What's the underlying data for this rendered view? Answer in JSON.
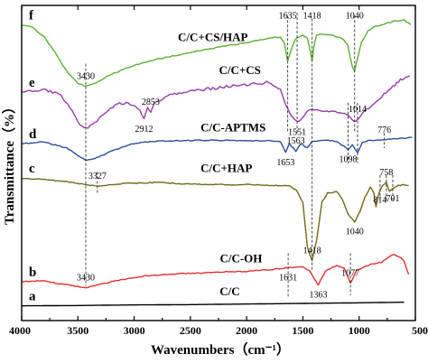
{
  "chart_data": {
    "type": "line",
    "xlabel": "Wavenumbers（cm⁻¹）",
    "ylabel": "Transmittance（%）",
    "xlim": [
      4000,
      500
    ],
    "x_reversed": true,
    "xticks": [
      4000,
      3500,
      3000,
      2500,
      2000,
      1500,
      1000,
      500
    ],
    "xtick_labels": [
      "4000",
      "3500",
      "3000",
      "2500",
      "2000",
      "1500",
      "1000",
      "500"
    ],
    "ylim": [
      0,
      100
    ],
    "series": [
      {
        "id": "a",
        "letter": "a",
        "name": "C/C",
        "color": "#000000",
        "points": [
          [
            4000,
            2.5
          ],
          [
            3500,
            2.6
          ],
          [
            3000,
            2.8
          ],
          [
            2500,
            2.9
          ],
          [
            2000,
            3.1
          ],
          [
            1500,
            3.3
          ],
          [
            1000,
            3.5
          ],
          [
            600,
            3.7
          ]
        ]
      },
      {
        "id": "b",
        "letter": "b",
        "name": "C/C-OH",
        "color": "#e03030",
        "points": [
          [
            4000,
            10.5
          ],
          [
            3800,
            10.8
          ],
          [
            3600,
            9.5
          ],
          [
            3430,
            8.5
          ],
          [
            3200,
            10.5
          ],
          [
            2900,
            12.5
          ],
          [
            2600,
            13.2
          ],
          [
            2300,
            13.6
          ],
          [
            2000,
            14.0
          ],
          [
            1800,
            14.5
          ],
          [
            1631,
            15.2
          ],
          [
            1500,
            15.5
          ],
          [
            1440,
            14.0
          ],
          [
            1363,
            9.5
          ],
          [
            1300,
            14.0
          ],
          [
            1200,
            16.0
          ],
          [
            1130,
            15.0
          ],
          [
            1077,
            10.0
          ],
          [
            1020,
            14.5
          ],
          [
            900,
            16.2
          ],
          [
            800,
            17.0
          ],
          [
            700,
            19.5
          ],
          [
            650,
            19.0
          ],
          [
            600,
            17.5
          ],
          [
            560,
            13.0
          ]
        ]
      },
      {
        "id": "c",
        "letter": "c",
        "name": "C/C+HAP",
        "color": "#6b6b1a",
        "points": [
          [
            4000,
            45.0
          ],
          [
            3800,
            44.5
          ],
          [
            3600,
            43.8
          ],
          [
            3430,
            42.8
          ],
          [
            3327,
            42.3
          ],
          [
            3100,
            43.2
          ],
          [
            2800,
            43.5
          ],
          [
            2500,
            43.0
          ],
          [
            2200,
            42.8
          ],
          [
            2000,
            42.8
          ],
          [
            1800,
            42.6
          ],
          [
            1700,
            42.5
          ],
          [
            1620,
            42.5
          ],
          [
            1560,
            41.0
          ],
          [
            1500,
            37.0
          ],
          [
            1460,
            22.0
          ],
          [
            1418,
            17.5
          ],
          [
            1380,
            24.0
          ],
          [
            1330,
            37.0
          ],
          [
            1280,
            40.0
          ],
          [
            1200,
            40.5
          ],
          [
            1150,
            38.0
          ],
          [
            1100,
            33.0
          ],
          [
            1040,
            30.5
          ],
          [
            990,
            34.0
          ],
          [
            950,
            38.5
          ],
          [
            900,
            42.0
          ],
          [
            870,
            40.0
          ],
          [
            850,
            35.5
          ],
          [
            830,
            39.0
          ],
          [
            814,
            41.0
          ],
          [
            790,
            42.5
          ],
          [
            758,
            43.5
          ],
          [
            730,
            40.5
          ],
          [
            701,
            41.5
          ],
          [
            650,
            42.5
          ],
          [
            600,
            42.8
          ],
          [
            560,
            42.5
          ]
        ]
      },
      {
        "id": "d",
        "letter": "d",
        "name": "C/C-APTMS",
        "color": "#2a4f9a",
        "points": [
          [
            4000,
            56.5
          ],
          [
            3800,
            57.0
          ],
          [
            3600,
            55.0
          ],
          [
            3500,
            52.5
          ],
          [
            3430,
            50.8
          ],
          [
            3350,
            51.5
          ],
          [
            3200,
            54.0
          ],
          [
            3000,
            56.5
          ],
          [
            2800,
            57.3
          ],
          [
            2500,
            57.5
          ],
          [
            2200,
            57.5
          ],
          [
            2000,
            57.4
          ],
          [
            1800,
            57.3
          ],
          [
            1700,
            57.0
          ],
          [
            1653,
            53.5
          ],
          [
            1620,
            56.5
          ],
          [
            1563,
            54.0
          ],
          [
            1520,
            56.5
          ],
          [
            1460,
            55.0
          ],
          [
            1420,
            57.0
          ],
          [
            1300,
            57.6
          ],
          [
            1200,
            57.2
          ],
          [
            1098,
            54.5
          ],
          [
            1060,
            56.2
          ],
          [
            1014,
            53.5
          ],
          [
            970,
            56.8
          ],
          [
            900,
            57.6
          ],
          [
            776,
            57.6
          ],
          [
            700,
            58.0
          ],
          [
            600,
            58.2
          ],
          [
            530,
            58.5
          ]
        ]
      },
      {
        "id": "e",
        "letter": "e",
        "name": "C/C+CS",
        "color": "#9a3aaa",
        "points": [
          [
            4000,
            73.5
          ],
          [
            3800,
            74.5
          ],
          [
            3650,
            72.5
          ],
          [
            3550,
            67.0
          ],
          [
            3480,
            62.5
          ],
          [
            3430,
            61.5
          ],
          [
            3350,
            63.5
          ],
          [
            3250,
            67.0
          ],
          [
            3150,
            69.5
          ],
          [
            3050,
            70.0
          ],
          [
            2950,
            67.5
          ],
          [
            2912,
            64.5
          ],
          [
            2880,
            68.5
          ],
          [
            2853,
            67.0
          ],
          [
            2820,
            70.0
          ],
          [
            2700,
            72.5
          ],
          [
            2500,
            73.8
          ],
          [
            2300,
            74.8
          ],
          [
            2100,
            75.8
          ],
          [
            1900,
            76.5
          ],
          [
            1800,
            76.8
          ],
          [
            1700,
            74.5
          ],
          [
            1655,
            70.0
          ],
          [
            1600,
            65.5
          ],
          [
            1551,
            63.5
          ],
          [
            1500,
            65.5
          ],
          [
            1450,
            67.5
          ],
          [
            1380,
            68.0
          ],
          [
            1320,
            67.5
          ],
          [
            1250,
            67.0
          ],
          [
            1150,
            66.5
          ],
          [
            1098,
            65.5
          ],
          [
            1050,
            64.0
          ],
          [
            1014,
            64.5
          ],
          [
            970,
            66.5
          ],
          [
            900,
            69.0
          ],
          [
            800,
            72.0
          ],
          [
            700,
            75.5
          ],
          [
            650,
            77.0
          ],
          [
            600,
            78.5
          ],
          [
            550,
            79.0
          ]
        ]
      },
      {
        "id": "f",
        "letter": "f",
        "name": "C/C+CS/HAP",
        "color": "#5ab032",
        "points": [
          [
            4000,
            96.0
          ],
          [
            3900,
            95.0
          ],
          [
            3800,
            92.0
          ],
          [
            3700,
            86.5
          ],
          [
            3600,
            80.5
          ],
          [
            3500,
            76.5
          ],
          [
            3430,
            75.5
          ],
          [
            3350,
            76.5
          ],
          [
            3200,
            79.5
          ],
          [
            3000,
            82.5
          ],
          [
            2800,
            84.5
          ],
          [
            2600,
            86.0
          ],
          [
            2400,
            87.5
          ],
          [
            2200,
            88.8
          ],
          [
            2000,
            90.0
          ],
          [
            1800,
            91.5
          ],
          [
            1700,
            91.8
          ],
          [
            1665,
            90.0
          ],
          [
            1635,
            84.0
          ],
          [
            1610,
            87.0
          ],
          [
            1580,
            90.0
          ],
          [
            1560,
            91.5
          ],
          [
            1500,
            92.5
          ],
          [
            1460,
            91.5
          ],
          [
            1430,
            86.5
          ],
          [
            1418,
            84.0
          ],
          [
            1405,
            88.0
          ],
          [
            1380,
            92.5
          ],
          [
            1330,
            93.0
          ],
          [
            1250,
            92.5
          ],
          [
            1150,
            91.5
          ],
          [
            1100,
            89.0
          ],
          [
            1060,
            82.0
          ],
          [
            1040,
            80.5
          ],
          [
            1020,
            84.0
          ],
          [
            980,
            90.0
          ],
          [
            920,
            94.0
          ],
          [
            850,
            95.5
          ],
          [
            800,
            96.0
          ],
          [
            700,
            97.0
          ],
          [
            600,
            97.5
          ],
          [
            540,
            96.0
          ]
        ]
      }
    ],
    "peak_labels": [
      {
        "text": "3430",
        "x": 3430,
        "series": "f",
        "pos": "above"
      },
      {
        "text": "1635",
        "x": 1635,
        "series": "f",
        "pos": "top"
      },
      {
        "text": "1418",
        "x": 1418,
        "series": "f",
        "pos": "top"
      },
      {
        "text": "1040",
        "x": 1040,
        "series": "f",
        "pos": "top"
      },
      {
        "text": "2853",
        "x": 2853,
        "series": "e",
        "pos": "above"
      },
      {
        "text": "2912",
        "x": 2912,
        "series": "e",
        "pos": "below"
      },
      {
        "text": "1551",
        "x": 1551,
        "series": "e",
        "pos": "below"
      },
      {
        "text": "1014",
        "x": 1014,
        "series": "e",
        "pos": "above"
      },
      {
        "text": "1563",
        "x": 1563,
        "series": "d",
        "pos": "above"
      },
      {
        "text": "776",
        "x": 776,
        "series": "d",
        "pos": "above"
      },
      {
        "text": "1653",
        "x": 1653,
        "series": "d",
        "pos": "below"
      },
      {
        "text": "1098",
        "x": 1098,
        "series": "d",
        "pos": "below"
      },
      {
        "text": "3327",
        "x": 3327,
        "series": "c",
        "pos": "above"
      },
      {
        "text": "1418",
        "x": 1418,
        "series": "c",
        "pos": "above"
      },
      {
        "text": "758",
        "x": 758,
        "series": "c",
        "pos": "above"
      },
      {
        "text": "814",
        "x": 814,
        "series": "c",
        "pos": "below"
      },
      {
        "text": "1040",
        "x": 1040,
        "series": "c",
        "pos": "below"
      },
      {
        "text": "701",
        "x": 701,
        "series": "c",
        "pos": "below"
      },
      {
        "text": "3430",
        "x": 3430,
        "series": "b",
        "pos": "above"
      },
      {
        "text": "1077",
        "x": 1077,
        "series": "b",
        "pos": "above"
      },
      {
        "text": "1631",
        "x": 1631,
        "series": "b",
        "pos": "below"
      },
      {
        "text": "1363",
        "x": 1363,
        "series": "b",
        "pos": "below"
      }
    ],
    "guide_lines": [
      {
        "x": 3430,
        "from": 9,
        "to": 83
      },
      {
        "x": 3327,
        "from": 40,
        "to": 47
      },
      {
        "x": 1635,
        "from": 60,
        "to": 99
      },
      {
        "x": 1551,
        "from": 60,
        "to": 100
      },
      {
        "x": 1418,
        "from": 14,
        "to": 98
      },
      {
        "x": 1631,
        "from": 5,
        "to": 20
      },
      {
        "x": 1077,
        "from": 6,
        "to": 20
      },
      {
        "x": 1098,
        "from": 50,
        "to": 70
      },
      {
        "x": 1014,
        "from": 50,
        "to": 70
      },
      {
        "x": 1040,
        "from": 60,
        "to": 99
      },
      {
        "x": 776,
        "from": 55,
        "to": 60
      },
      {
        "x": 814,
        "from": 37,
        "to": 46
      },
      {
        "x": 758,
        "from": 37,
        "to": 46
      },
      {
        "x": 701,
        "from": 37,
        "to": 46
      }
    ],
    "grid": false,
    "legend": "none"
  }
}
